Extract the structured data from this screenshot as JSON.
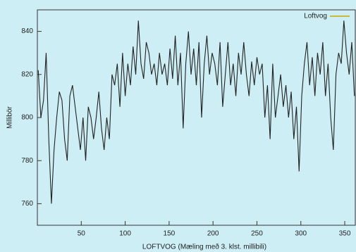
{
  "chart_data": {
    "type": "line",
    "x_label": "LOFTVOG (Mæling með 3. klst. millibili)",
    "y_label": "Millibör",
    "x": [
      1,
      4,
      7,
      10,
      13,
      16,
      19,
      22,
      25,
      28,
      31,
      34,
      37,
      40,
      43,
      46,
      49,
      52,
      55,
      58,
      61,
      64,
      67,
      70,
      73,
      76,
      79,
      82,
      85,
      88,
      91,
      94,
      97,
      100,
      103,
      106,
      109,
      112,
      115,
      118,
      121,
      124,
      127,
      130,
      133,
      136,
      139,
      142,
      145,
      148,
      151,
      154,
      157,
      160,
      163,
      166,
      169,
      172,
      175,
      178,
      181,
      184,
      187,
      190,
      193,
      196,
      199,
      202,
      205,
      208,
      211,
      214,
      217,
      220,
      223,
      226,
      229,
      232,
      235,
      238,
      241,
      244,
      247,
      250,
      253,
      256,
      259,
      262,
      265,
      268,
      271,
      274,
      277,
      280,
      283,
      286,
      289,
      292,
      295,
      298,
      301,
      304,
      307,
      310,
      313,
      316,
      319,
      322,
      325,
      328,
      331,
      334,
      337,
      340,
      343,
      346,
      349,
      352,
      355,
      358,
      361
    ],
    "series": [
      {
        "name": "Loftvog",
        "color": "#222222",
        "legend_color": "#c8a800",
        "values": [
          822,
          800,
          808,
          830,
          790,
          760,
          785,
          800,
          812,
          808,
          790,
          780,
          810,
          815,
          805,
          795,
          785,
          800,
          780,
          805,
          800,
          790,
          800,
          812,
          795,
          785,
          800,
          790,
          820,
          815,
          825,
          805,
          830,
          810,
          825,
          815,
          833,
          820,
          845,
          825,
          818,
          835,
          830,
          820,
          825,
          815,
          830,
          820,
          825,
          815,
          832,
          818,
          838,
          815,
          830,
          795,
          825,
          840,
          820,
          832,
          815,
          835,
          800,
          825,
          838,
          820,
          830,
          825,
          815,
          835,
          805,
          820,
          835,
          815,
          825,
          810,
          830,
          820,
          835,
          820,
          810,
          826,
          815,
          828,
          820,
          825,
          800,
          815,
          790,
          825,
          800,
          810,
          820,
          805,
          815,
          800,
          812,
          790,
          805,
          775,
          810,
          825,
          835,
          815,
          828,
          810,
          830,
          820,
          835,
          810,
          825,
          800,
          785,
          820,
          830,
          825,
          845,
          830,
          820,
          835,
          810
        ]
      }
    ],
    "xlim": [
      0,
      362
    ],
    "ylim": [
      750,
      850
    ],
    "xticks": [
      50,
      100,
      150,
      200,
      250,
      300,
      350
    ],
    "yticks": [
      760,
      780,
      800,
      820,
      840
    ],
    "legend": "upper right"
  }
}
